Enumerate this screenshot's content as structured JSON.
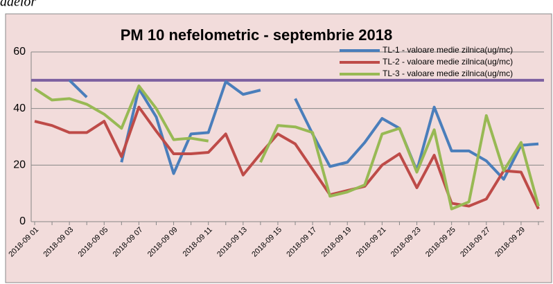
{
  "fragment_text": "adelor",
  "chart_data": {
    "type": "line",
    "title": "PM 10 nefelometric - septembrie  2018",
    "categories": [
      "2018-09 01",
      null,
      "2018-09 03",
      null,
      "2018-09 05",
      null,
      "2018-09 07",
      null,
      "2018-09 09",
      null,
      "2018-09 11",
      null,
      "2018-09 13",
      null,
      "2018-09 15",
      null,
      "2018-09 17",
      null,
      "2018-09 19",
      null,
      "2018-09 21",
      null,
      "2018-09 23",
      null,
      "2018-09 25",
      null,
      "2018-09 27",
      null,
      "2018-09 29",
      null
    ],
    "series": [
      {
        "name": "TL-1 - valoare medie zilnica(ug/mc)",
        "color": "#4a7ebb",
        "values": [
          null,
          null,
          50,
          44,
          null,
          21,
          47,
          37,
          17,
          31,
          31.5,
          49.5,
          45,
          46.5,
          null,
          43.5,
          31,
          19.5,
          21,
          28,
          36.5,
          33,
          18,
          40.5,
          25,
          25,
          21.5,
          15,
          27,
          27.5
        ]
      },
      {
        "name": "TL-2 - valoare medie zilnica(ug/mc)",
        "color": "#be4b48",
        "values": [
          35.5,
          34,
          31.5,
          31.5,
          35.5,
          23,
          40.5,
          32,
          24,
          24,
          24.5,
          31,
          16.5,
          24,
          31,
          27.5,
          18.5,
          9.5,
          11,
          12.5,
          20,
          24,
          12,
          23.5,
          6.5,
          5.5,
          8,
          18,
          17.5,
          4.5
        ]
      },
      {
        "name": "TL-3 - valoare medie zilnica(ug/mc)",
        "color": "#98b954",
        "values": [
          47,
          43,
          43.5,
          41.5,
          38,
          33,
          48,
          40,
          29,
          29.5,
          28.5,
          null,
          null,
          21,
          34,
          33.5,
          31.5,
          9,
          10.5,
          13,
          31,
          33,
          17.5,
          32.5,
          4.5,
          7,
          37.5,
          18,
          28,
          5.5
        ]
      }
    ],
    "reference_line": {
      "value": 50,
      "color": "#7d60a0"
    },
    "ylim": [
      0,
      60
    ],
    "yticks": [
      0,
      20,
      40,
      60
    ],
    "grid": true,
    "legend": "top-right",
    "background": "#f2dcdb"
  }
}
